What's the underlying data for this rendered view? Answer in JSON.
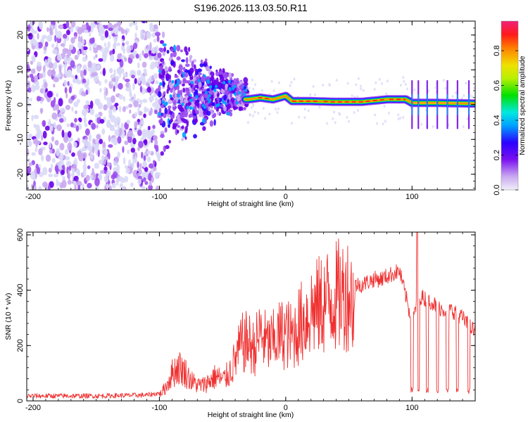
{
  "page_title": "S196.2026.113.03.50.R11",
  "colors": {
    "snr_line": "#f03030",
    "axis": "#000000",
    "background": "#ffffff",
    "colormap": [
      "#d9d9f7",
      "#c9a8f0",
      "#9a4cf0",
      "#6a00e8",
      "#2a00ff",
      "#00a0ff",
      "#00e0e0",
      "#00e000",
      "#e0e000",
      "#ff9000",
      "#ff2020",
      "#f0207a"
    ]
  },
  "chart_data": [
    {
      "type": "heatmap",
      "name": "spectrogram",
      "xlabel": "Height of straight line (km)",
      "ylabel": "Frequency (Hz)",
      "xlim": [
        -205,
        150
      ],
      "ylim": [
        -24.5,
        24
      ],
      "xticks": [
        -200,
        -100,
        0,
        100
      ],
      "xtick_labels": [
        "-200",
        "-100",
        "0",
        "100"
      ],
      "yticks": [
        20,
        10,
        0,
        -10,
        -20
      ],
      "ytick_labels": [
        "20",
        "10",
        "0",
        "-10",
        "-20"
      ],
      "signal_track": {
        "note": "bright narrow line near 0 Hz from about -30 km to 150 km; scattered noise below -30 km",
        "points": [
          {
            "x": -30,
            "y": 1.5
          },
          {
            "x": -20,
            "y": 2.0
          },
          {
            "x": -10,
            "y": 1.5
          },
          {
            "x": 0,
            "y": 2.5
          },
          {
            "x": 5,
            "y": 1.0
          },
          {
            "x": 20,
            "y": 1.0
          },
          {
            "x": 40,
            "y": 0.8
          },
          {
            "x": 60,
            "y": 0.8
          },
          {
            "x": 80,
            "y": 1.5
          },
          {
            "x": 95,
            "y": 1.5
          },
          {
            "x": 100,
            "y": 0.5
          },
          {
            "x": 120,
            "y": 0.5
          },
          {
            "x": 150,
            "y": 0.3
          }
        ],
        "peak_amplitude": 0.9
      },
      "colorbar": {
        "label": "Normalized spectral amplitude",
        "range": [
          0.0,
          0.97
        ],
        "ticks": [
          0.0,
          0.2,
          0.4,
          0.6,
          0.8
        ],
        "tick_labels": [
          "0.0",
          "0.2",
          "0.4",
          "0.6",
          "0.8"
        ]
      }
    },
    {
      "type": "line",
      "name": "snr",
      "xlabel": "Height of straight line (km)",
      "ylabel": "SNR (10 * v/v)",
      "xlim": [
        -205,
        150
      ],
      "ylim": [
        0,
        610
      ],
      "xticks": [
        -200,
        -100,
        0,
        100
      ],
      "xtick_labels": [
        "-200",
        "-100",
        "0",
        "100"
      ],
      "yticks": [
        0,
        200,
        400,
        600
      ],
      "ytick_labels": [
        "0",
        "200",
        "400",
        "600"
      ],
      "series": [
        {
          "name": "SNR",
          "envelope_x": [
            -205,
            -150,
            -110,
            -100,
            -95,
            -90,
            -85,
            -80,
            -75,
            -70,
            -65,
            -60,
            -55,
            -50,
            -45,
            -40,
            -35,
            -30,
            -25,
            -20,
            -15,
            -10,
            -5,
            0,
            5,
            10,
            15,
            20,
            25,
            30,
            35,
            40,
            45,
            50,
            55,
            60,
            65,
            70,
            75,
            80,
            85,
            90,
            95,
            100,
            105,
            110,
            115,
            120,
            125,
            130,
            135,
            140,
            145,
            150
          ],
          "envelope_y": [
            15,
            15,
            18,
            25,
            60,
            120,
            150,
            130,
            90,
            70,
            70,
            90,
            110,
            90,
            120,
            180,
            250,
            260,
            230,
            300,
            250,
            260,
            290,
            300,
            280,
            330,
            360,
            400,
            410,
            430,
            450,
            460,
            470,
            480,
            420,
            420,
            430,
            440,
            440,
            450,
            460,
            470,
            380,
            280,
            380,
            370,
            360,
            340,
            330,
            330,
            320,
            300,
            270,
            250
          ],
          "dips": [
            {
              "x": 100,
              "y": 30
            },
            {
              "x": 105,
              "y": 30
            },
            {
              "x": 112,
              "y": 30
            },
            {
              "x": 120,
              "y": 25
            },
            {
              "x": 128,
              "y": 25
            },
            {
              "x": 136,
              "y": 25
            },
            {
              "x": 145,
              "y": 25
            }
          ],
          "max_spike": {
            "x": 104,
            "y": 610
          }
        }
      ]
    }
  ]
}
